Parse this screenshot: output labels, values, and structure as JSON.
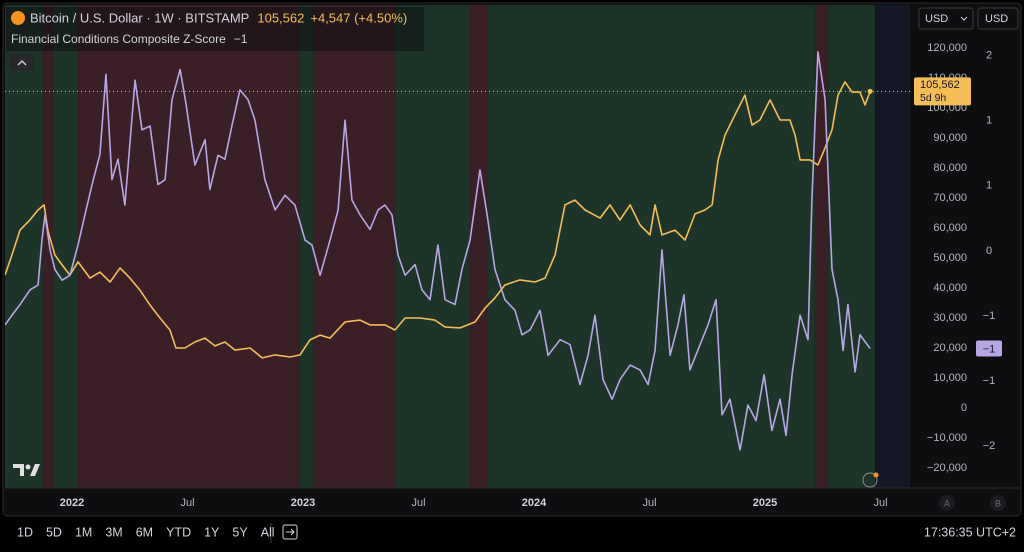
{
  "chart_data": {
    "type": "line",
    "series": [
      {
        "name": "Bitcoin / U.S. Dollar · 1W · BITSTAMP",
        "color": "#f5bd55",
        "x": [
          2021.71,
          2021.74,
          2021.775,
          2021.818,
          2021.853,
          2021.879,
          2021.896,
          2021.926,
          2021.957,
          2021.991,
          2022.026,
          2022.078,
          2022.121,
          2022.165,
          2022.208,
          2022.251,
          2022.294,
          2022.338,
          2022.381,
          2022.424,
          2022.45,
          2022.489,
          2022.532,
          2022.576,
          2022.619,
          2022.662,
          2022.706,
          2022.771,
          2022.823,
          2022.879,
          2022.944,
          2022.987,
          2023.03,
          2023.074,
          2023.117,
          2023.182,
          2023.247,
          2023.29,
          2023.355,
          2023.398,
          2023.442,
          2023.506,
          2023.571,
          2023.615,
          2023.68,
          2023.745,
          2023.788,
          2023.831,
          2023.874,
          2023.939,
          2024.004,
          2024.048,
          2024.091,
          2024.134,
          2024.177,
          2024.221,
          2024.286,
          2024.329,
          2024.372,
          2024.416,
          2024.459,
          2024.502,
          2024.524,
          2024.554,
          2024.61,
          2024.654,
          2024.697,
          2024.74,
          2024.771,
          2024.797,
          2024.827,
          2024.87,
          2024.913,
          2024.944,
          2024.978,
          2025.022,
          2025.065,
          2025.108,
          2025.13,
          2025.152,
          2025.195,
          2025.229,
          2025.26,
          2025.29,
          2025.316,
          2025.346,
          2025.377,
          2025.411,
          2025.433,
          2025.455
        ],
        "values": [
          44300,
          51000,
          59300,
          62700,
          66000,
          67700,
          59000,
          51000,
          47700,
          44300,
          48700,
          43300,
          45300,
          42000,
          46700,
          43300,
          39300,
          34300,
          30000,
          26000,
          20000,
          20000,
          22000,
          23300,
          20700,
          22000,
          19300,
          20000,
          16700,
          17700,
          17000,
          17700,
          22700,
          24300,
          23300,
          28700,
          29300,
          27700,
          27700,
          26000,
          30000,
          30000,
          29300,
          27000,
          26700,
          28700,
          33300,
          36700,
          41000,
          42700,
          42000,
          43300,
          51000,
          67700,
          69300,
          66000,
          63300,
          67700,
          62700,
          67700,
          61000,
          57700,
          67700,
          57700,
          59300,
          56000,
          64700,
          66000,
          67700,
          82700,
          91000,
          97700,
          104300,
          94300,
          96000,
          102700,
          96000,
          96000,
          91000,
          82700,
          82700,
          81000,
          86700,
          92700,
          104300,
          108700,
          105300,
          105300,
          101000,
          105562
        ]
      },
      {
        "name": "Financial Conditions Composite Z-Score",
        "color": "#b7a6e6",
        "axis": "y2",
        "x": [
          2021.71,
          2021.74,
          2021.775,
          2021.818,
          2021.853,
          2021.87,
          2021.883,
          2021.905,
          2021.926,
          2021.957,
          2021.991,
          2022.026,
          2022.056,
          2022.087,
          2022.121,
          2022.147,
          2022.173,
          2022.199,
          2022.229,
          2022.273,
          2022.303,
          2022.338,
          2022.372,
          2022.403,
          2022.433,
          2022.468,
          2022.494,
          2022.532,
          2022.576,
          2022.597,
          2022.632,
          2022.662,
          2022.693,
          2022.727,
          2022.762,
          2022.792,
          2022.835,
          2022.879,
          2022.922,
          2022.965,
          2023.009,
          2023.039,
          2023.074,
          2023.117,
          2023.152,
          2023.182,
          2023.212,
          2023.247,
          2023.29,
          2023.325,
          2023.355,
          2023.385,
          2023.411,
          2023.442,
          2023.485,
          2023.515,
          2023.55,
          2023.584,
          2023.615,
          2023.658,
          2023.688,
          2023.723,
          2023.766,
          2023.797,
          2023.831,
          2023.874,
          2023.918,
          2023.948,
          2023.983,
          2024.026,
          2024.061,
          2024.113,
          2024.156,
          2024.199,
          2024.234,
          2024.264,
          2024.299,
          2024.338,
          2024.372,
          2024.416,
          2024.459,
          2024.494,
          2024.524,
          2024.554,
          2024.589,
          2024.623,
          2024.649,
          2024.675,
          2024.719,
          2024.753,
          2024.788,
          2024.814,
          2024.848,
          2024.892,
          2024.926,
          2024.961,
          2024.996,
          2025.03,
          2025.065,
          2025.091,
          2025.117,
          2025.152,
          2025.186,
          2025.203,
          2025.229,
          2025.26,
          2025.29,
          2025.316,
          2025.338,
          2025.359,
          2025.39,
          2025.411,
          2025.455
        ],
        "values": [
          -0.76,
          -0.66,
          -0.55,
          -0.4,
          -0.35,
          0.11,
          0.37,
          0.01,
          -0.19,
          -0.3,
          -0.25,
          0.06,
          0.37,
          0.68,
          0.99,
          1.81,
          0.73,
          0.94,
          0.47,
          1.75,
          1.24,
          1.28,
          0.68,
          0.73,
          1.55,
          1.86,
          1.5,
          0.88,
          1.14,
          0.63,
          0.98,
          0.94,
          1.29,
          1.65,
          1.55,
          1.34,
          0.73,
          0.42,
          0.57,
          0.47,
          0.11,
          0.06,
          -0.25,
          0.11,
          0.42,
          1.34,
          0.52,
          0.37,
          0.22,
          0.42,
          0.47,
          0.37,
          -0.04,
          -0.25,
          -0.14,
          -0.4,
          -0.5,
          0.06,
          -0.5,
          -0.55,
          -0.19,
          0.11,
          0.83,
          0.37,
          -0.19,
          -0.5,
          -0.61,
          -0.86,
          -0.81,
          -0.61,
          -1.07,
          -0.91,
          -0.96,
          -1.37,
          -1.07,
          -0.66,
          -1.32,
          -1.52,
          -1.32,
          -1.17,
          -1.22,
          -1.37,
          -1.02,
          0.01,
          -1.07,
          -0.76,
          -0.45,
          -1.22,
          -0.96,
          -0.76,
          -0.5,
          -1.68,
          -1.52,
          -2.04,
          -1.58,
          -1.74,
          -1.27,
          -1.84,
          -1.52,
          -1.89,
          -1.27,
          -0.66,
          -0.91,
          0.52,
          2.04,
          1.55,
          -0.19,
          -0.5,
          -1.02,
          -0.55,
          -1.24,
          -0.86,
          -1
        ]
      }
    ],
    "bands": [
      {
        "from": 2021.71,
        "to": 2021.874,
        "color": "#1d3428"
      },
      {
        "from": 2021.874,
        "to": 2021.918,
        "color": "#3a1f27"
      },
      {
        "from": 2021.918,
        "to": 2022.026,
        "color": "#1d3428"
      },
      {
        "from": 2022.026,
        "to": 2022.987,
        "color": "#3a1f27"
      },
      {
        "from": 2022.987,
        "to": 2023.043,
        "color": "#1d3428"
      },
      {
        "from": 2023.043,
        "to": 2023.398,
        "color": "#3a1f27"
      },
      {
        "from": 2023.398,
        "to": 2023.723,
        "color": "#1d3428"
      },
      {
        "from": 2023.723,
        "to": 2023.801,
        "color": "#3a1f27"
      },
      {
        "from": 2023.801,
        "to": 2025.216,
        "color": "#1d3428"
      },
      {
        "from": 2025.216,
        "to": 2025.273,
        "color": "#3a1f27"
      },
      {
        "from": 2025.273,
        "to": 2025.476,
        "color": "#1d3428"
      }
    ],
    "xlim": [
      2021.71,
      2025.606
    ],
    "xticks": [
      2022,
      {
        "value": 2022.5,
        "label": "Jul"
      },
      2023,
      {
        "value": 2023.5,
        "label": "Jul"
      },
      2024,
      {
        "value": 2024.5,
        "label": "Jul"
      },
      2025,
      {
        "value": 2025.5,
        "label": "Jul"
      }
    ],
    "ylim": [
      -26667,
      134333
    ],
    "yticks": [
      {
        "value": 120000,
        "label": "120,000"
      },
      {
        "value": 110000,
        "label": "110,000"
      },
      {
        "value": 100000,
        "label": "100,000"
      },
      {
        "value": 90000,
        "label": "90,000"
      },
      {
        "value": 80000,
        "label": "80,000"
      },
      {
        "value": 70000,
        "label": "70,000"
      },
      {
        "value": 60000,
        "label": "60,000"
      },
      {
        "value": 50000,
        "label": "50,000"
      },
      {
        "value": 40000,
        "label": "40,000"
      },
      {
        "value": 30000,
        "label": "30,000"
      },
      {
        "value": 20000,
        "label": "20,000"
      },
      {
        "value": 10000,
        "label": "10,000"
      },
      0,
      {
        "value": -10000,
        "label": "−10,000"
      },
      {
        "value": -20000,
        "label": "−20,000"
      }
    ],
    "y2lim": [
      -2.43,
      2.52
    ],
    "y2ticks": [
      2,
      {
        "value": 1.333,
        "label": "1"
      },
      {
        "value": 0.667,
        "label": "1"
      },
      0,
      {
        "value": -0.667,
        "label": "−1"
      },
      {
        "value": -1.333,
        "label": "−1"
      },
      {
        "value": -2,
        "label": "−2"
      }
    ],
    "price_badge": {
      "value": 105562,
      "label": "105,562",
      "countdown": "5d 9h"
    },
    "z_badge": {
      "value": -1,
      "label": "−1"
    },
    "change": "+4,547 (+4.50%)",
    "grid": false
  },
  "currency": [
    "USD",
    "USD"
  ],
  "scale_buttons": [
    "A",
    "B"
  ],
  "toolbar": {
    "ranges": [
      "1D",
      "5D",
      "1M",
      "3M",
      "6M",
      "YTD",
      "1Y",
      "5Y",
      "All"
    ],
    "clock": "17:36:35 UTC+2"
  }
}
